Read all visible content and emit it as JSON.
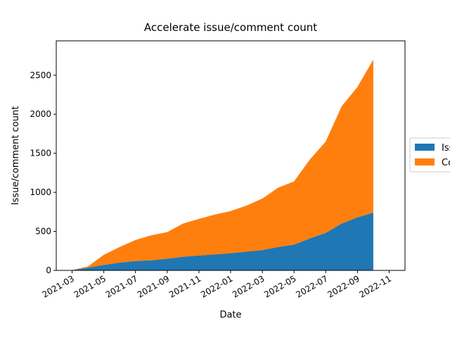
{
  "chart_data": {
    "type": "stacked_area",
    "title": "Accelerate issue/comment count",
    "xlabel": "Date",
    "ylabel": "Issue/comment count",
    "x": [
      "2021-03",
      "2021-04",
      "2021-05",
      "2021-06",
      "2021-07",
      "2021-08",
      "2021-09",
      "2021-10",
      "2021-11",
      "2021-12",
      "2022-01",
      "2022-02",
      "2022-03",
      "2022-04",
      "2022-05",
      "2022-06",
      "2022-07",
      "2022-08",
      "2022-09",
      "2022-10"
    ],
    "series": [
      {
        "name": "Iss",
        "color": "#1f77b4",
        "values": [
          3,
          35,
          70,
          100,
          120,
          130,
          150,
          175,
          190,
          205,
          220,
          240,
          260,
          300,
          330,
          410,
          480,
          600,
          680,
          740
        ]
      },
      {
        "name": "Co",
        "color": "#ff7f0e",
        "values": [
          2,
          15,
          130,
          200,
          270,
          320,
          340,
          425,
          470,
          510,
          540,
          590,
          660,
          760,
          810,
          1010,
          1170,
          1500,
          1670,
          1960
        ]
      }
    ],
    "xlim": [
      "2021-02",
      "2022-12"
    ],
    "xticks": [
      "2021-03",
      "2021-05",
      "2021-07",
      "2021-09",
      "2021-11",
      "2022-01",
      "2022-03",
      "2022-05",
      "2022-07",
      "2022-09",
      "2022-11"
    ],
    "ylim": [
      0,
      2940
    ],
    "yticks": [
      0,
      500,
      1000,
      1500,
      2000,
      2500
    ],
    "legend": "right"
  }
}
